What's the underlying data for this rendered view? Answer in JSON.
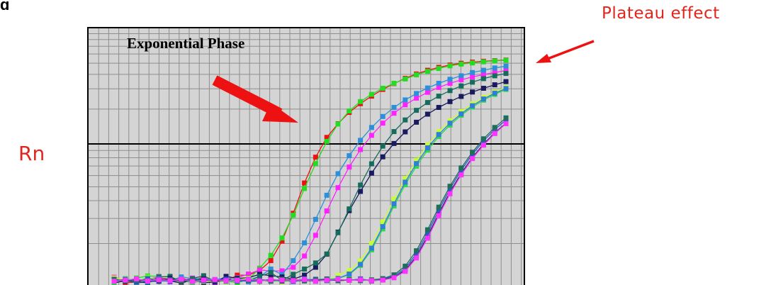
{
  "chart_data": {
    "type": "line",
    "title": "Exponential Phase",
    "ylabel": "Rn",
    "xlabel": "",
    "xlim": [
      1,
      36
    ],
    "ylim": [
      0,
      100
    ],
    "grid": true,
    "annotations": [
      {
        "text": "Exponential Phase"
      },
      {
        "text": "Plateau effect"
      }
    ],
    "colors": {
      "background": "#d4d4d4",
      "annotation": "#e0261c",
      "arrow": "#ee1111"
    },
    "series": [
      {
        "color": "#ee1111",
        "values": [
          1.5,
          0.4,
          0.4,
          1.6,
          2.1,
          1.4,
          1.9,
          0.8,
          2.4,
          0.7,
          0.8,
          2.9,
          2.9,
          4.5,
          7.9,
          14.6,
          24.2,
          34.6,
          43.5,
          50.3,
          55.0,
          58.9,
          61.9,
          64.5,
          66.8,
          68.8,
          70.6,
          72.1,
          73.4,
          74.4,
          75.2,
          75.8,
          76.2,
          76.5,
          76.7,
          76.9
        ]
      },
      {
        "color": "#22dd22",
        "values": [
          0.5,
          0.8,
          1.9,
          2.6,
          2.5,
          2.2,
          0.6,
          1.5,
          1.8,
          1.1,
          0.9,
          0.3,
          1.4,
          5.3,
          9.7,
          15.7,
          23.5,
          32.7,
          41.3,
          48.9,
          54.9,
          59.4,
          62.6,
          65.1,
          67.2,
          68.9,
          70.4,
          71.8,
          73.0,
          74.0,
          74.9,
          75.5,
          75.9,
          76.3,
          76.6,
          76.8
        ]
      },
      {
        "color": "#ff22ff",
        "values": [
          2.2,
          1.1,
          1.5,
          1.2,
          2.4,
          0.6,
          1.0,
          1.9,
          2.6,
          0.3,
          1.8,
          2.0,
          3.3,
          4.7,
          4.3,
          4.4,
          5.6,
          9.5,
          16.6,
          25.0,
          33.0,
          40.1,
          46.1,
          51.0,
          55.2,
          58.6,
          61.5,
          63.8,
          65.8,
          67.5,
          68.9,
          70.1,
          71.1,
          71.9,
          72.6,
          73.3
        ]
      },
      {
        "color": "#2e8fd9",
        "values": [
          1.6,
          1.2,
          0.2,
          0.6,
          0.8,
          1.0,
          2.3,
          1.7,
          1.6,
          1.4,
          1.8,
          1.9,
          1.2,
          2.5,
          5.0,
          3.1,
          7.9,
          14.0,
          22.1,
          30.4,
          37.8,
          44.0,
          49.3,
          53.7,
          57.5,
          60.6,
          63.2,
          65.4,
          67.3,
          68.9,
          70.3,
          71.5,
          72.6,
          73.4,
          74.2,
          74.8
        ]
      },
      {
        "color": "#1a1a5e",
        "values": [
          0.2,
          1.0,
          0.6,
          0.3,
          1.8,
          0.9,
          0.2,
          1.2,
          0.3,
          0.5,
          2.5,
          1.8,
          2.0,
          3.2,
          2.7,
          2.3,
          1.5,
          2.9,
          5.6,
          10.1,
          17.7,
          25.1,
          31.7,
          38.0,
          43.6,
          48.2,
          52.2,
          55.5,
          58.3,
          60.6,
          62.6,
          64.4,
          65.9,
          67.2,
          68.4,
          69.5
        ]
      },
      {
        "color": "#176b5c",
        "values": [
          1.2,
          1.0,
          1.5,
          0.4,
          2.3,
          2.5,
          0.6,
          1.7,
          2.7,
          0.8,
          1.3,
          0.9,
          0.9,
          2.5,
          3.8,
          1.1,
          3.2,
          5.0,
          7.1,
          10.2,
          17.5,
          25.7,
          33.9,
          41.2,
          47.3,
          52.3,
          56.3,
          59.6,
          62.3,
          64.5,
          66.4,
          68.0,
          69.3,
          70.5,
          71.5,
          72.3
        ]
      },
      {
        "color": "#c8ff33",
        "values": [
          1.9,
          1.3,
          0.8,
          2.2,
          1.1,
          1.6,
          0.5,
          1.4,
          0.7,
          1.0,
          0.6,
          1.2,
          1.9,
          0.8,
          1.5,
          0.6,
          1.0,
          1.2,
          1.4,
          1.0,
          2.8,
          4.5,
          7.8,
          13.8,
          21.2,
          29.1,
          36.1,
          42.4,
          47.7,
          52.3,
          56.0,
          59.2,
          61.8,
          64.0,
          65.9,
          67.5
        ]
      },
      {
        "color": "#2bd94a",
        "values": [
          0.4,
          1.7,
          0.8,
          2.0,
          0.9,
          1.5,
          1.1,
          0.3,
          1.0,
          1.2,
          0.7,
          1.0,
          1.6,
          1.3,
          1.0,
          0.8,
          1.1,
          1.4,
          0.9,
          1.1,
          1.7,
          3.1,
          6.3,
          11.6,
          18.8,
          26.7,
          34.0,
          40.4,
          45.9,
          50.6,
          54.5,
          57.9,
          60.7,
          63.1,
          65.1,
          66.8
        ]
      },
      {
        "color": "#2f7fd6",
        "values": [
          0.9,
          1.4,
          1.2,
          0.6,
          1.7,
          1.0,
          1.3,
          0.9,
          1.5,
          0.8,
          1.1,
          1.3,
          0.6,
          1.0,
          1.4,
          1.2,
          0.9,
          1.6,
          1.1,
          1.3,
          1.8,
          3.3,
          6.6,
          12.2,
          19.6,
          27.5,
          34.9,
          41.3,
          46.7,
          51.3,
          55.2,
          58.4,
          61.2,
          63.5,
          65.5,
          67.1
        ]
      },
      {
        "color": "#22226e",
        "values": [
          1.3,
          0.7,
          1.5,
          1.0,
          0.8,
          1.9,
          0.6,
          1.2,
          1.6,
          0.7,
          1.4,
          1.0,
          1.2,
          0.8,
          1.5,
          0.9,
          1.3,
          1.1,
          0.8,
          1.4,
          1.0,
          1.2,
          1.5,
          0.9,
          1.4,
          2.2,
          4.6,
          9.4,
          16.3,
          24.1,
          31.5,
          37.9,
          43.4,
          48.0,
          51.9,
          55.2
        ]
      },
      {
        "color": "#3355cc",
        "values": [
          1.0,
          1.4,
          0.8,
          1.6,
          1.2,
          0.7,
          1.5,
          1.1,
          0.9,
          1.3,
          1.5,
          0.8,
          1.2,
          1.4,
          1.0,
          1.3,
          0.7,
          1.2,
          1.5,
          1.0,
          1.3,
          1.1,
          1.6,
          1.0,
          1.5,
          2.6,
          5.2,
          10.3,
          17.4,
          25.3,
          32.6,
          39.0,
          44.5,
          49.1,
          53.0,
          56.3
        ]
      },
      {
        "color": "#1f6e5a",
        "values": [
          1.5,
          0.9,
          1.2,
          1.0,
          1.4,
          1.3,
          0.8,
          1.6,
          1.0,
          1.2,
          0.9,
          1.4,
          1.1,
          1.3,
          0.8,
          1.5,
          1.2,
          0.9,
          1.3,
          1.6,
          1.1,
          1.4,
          1.0,
          1.3,
          1.7,
          3.0,
          6.0,
          11.3,
          18.5,
          26.3,
          33.5,
          39.8,
          45.2,
          49.8,
          53.7,
          57.0
        ]
      },
      {
        "color": "#ff33ff",
        "values": [
          0.8,
          1.2,
          1.6,
          0.9,
          1.3,
          1.0,
          1.5,
          0.7,
          1.2,
          1.4,
          1.0,
          1.1,
          1.5,
          0.9,
          1.3,
          1.2,
          1.0,
          1.4,
          0.8,
          1.2,
          1.5,
          1.1,
          1.3,
          1.0,
          1.2,
          2.0,
          4.2,
          8.8,
          15.6,
          23.4,
          30.9,
          37.4,
          43.0,
          47.6,
          51.6,
          55.0
        ]
      }
    ]
  }
}
